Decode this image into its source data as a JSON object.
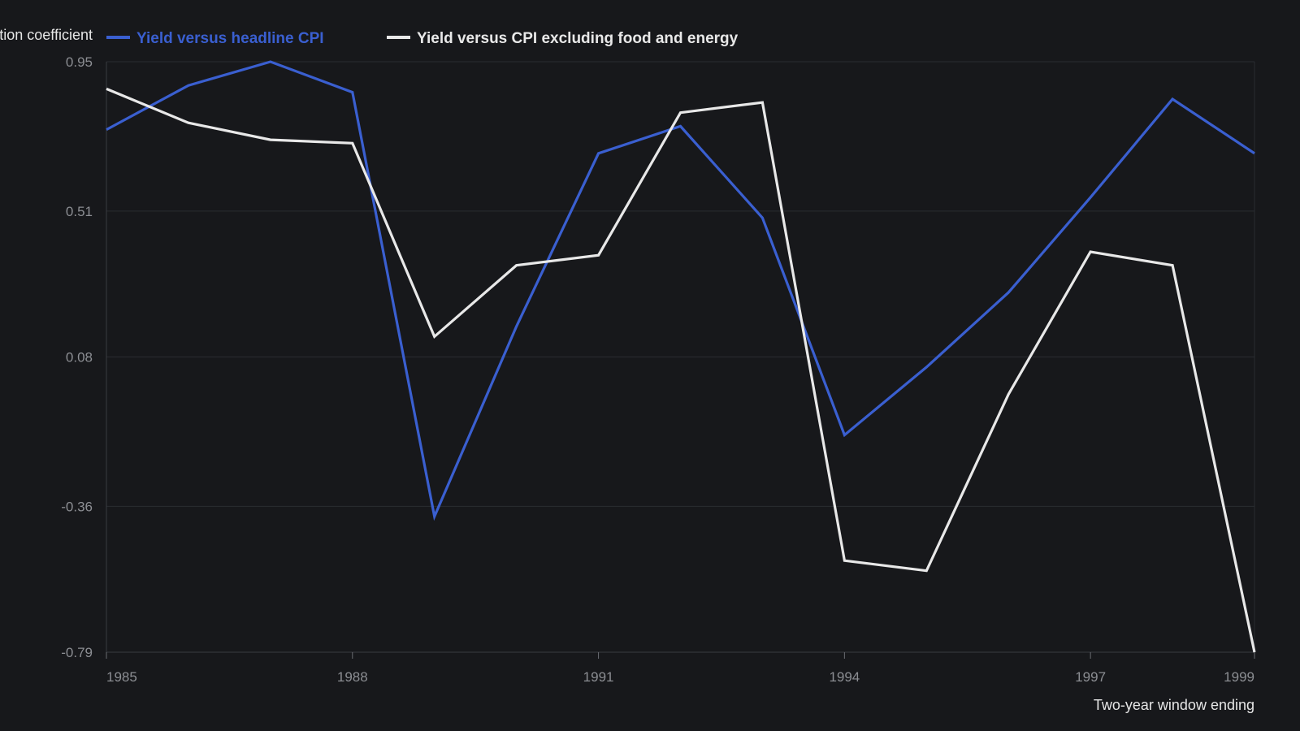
{
  "chart_data": {
    "type": "line",
    "title": "",
    "ylabel": "Correlation coefficient",
    "xlabel": "Two-year window ending",
    "x": [
      1985,
      1986,
      1987,
      1988,
      1989,
      1990,
      1991,
      1992,
      1993,
      1994,
      1995,
      1996,
      1997,
      1998,
      1999
    ],
    "x_ticks": [
      1985,
      1988,
      1991,
      1994,
      1997,
      1999
    ],
    "y_ticks": [
      0.95,
      0.51,
      0.08,
      -0.36,
      -0.79
    ],
    "ylim": [
      -0.79,
      0.95
    ],
    "grid": true,
    "legend_position": "top-left",
    "series": [
      {
        "name": "Yield versus headline CPI",
        "color": "#3a5fd0",
        "values": [
          0.75,
          0.88,
          0.95,
          0.86,
          -0.39,
          0.17,
          0.68,
          0.76,
          0.49,
          -0.15,
          0.05,
          0.27,
          0.55,
          0.84,
          0.68
        ]
      },
      {
        "name": "Yield versus CPI excluding food and energy",
        "color": "#e8e8e8",
        "values": [
          0.87,
          0.77,
          0.72,
          0.71,
          0.14,
          0.35,
          0.38,
          0.8,
          0.83,
          -0.52,
          -0.55,
          -0.03,
          0.39,
          0.35,
          -0.79
        ]
      }
    ]
  }
}
